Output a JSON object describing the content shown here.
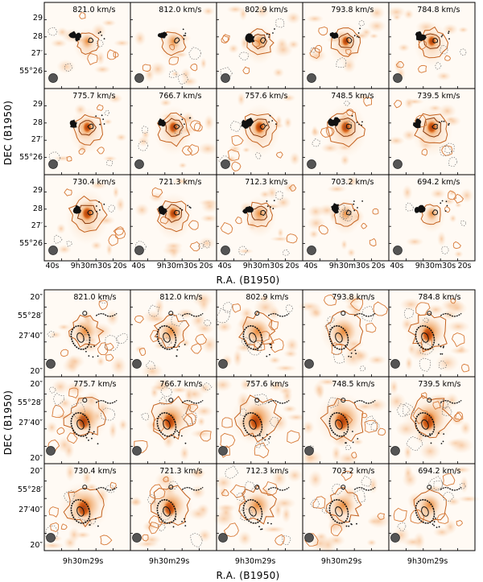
{
  "figure": {
    "top": {
      "velocity_unit": "km/s",
      "velocities": [
        "821.0",
        "812.0",
        "802.9",
        "793.8",
        "784.8",
        "775.7",
        "766.7",
        "757.6",
        "748.5",
        "739.5",
        "730.4",
        "721.3",
        "712.3",
        "703.2",
        "694.2"
      ],
      "ylabel": "DEC (B1950)",
      "xlabel": "R.A. (B1950)",
      "y_ticks": [
        {
          "main": "29",
          "sup": ""
        },
        {
          "main": "28",
          "sup": ""
        },
        {
          "main": "27",
          "sup": "′"
        },
        {
          "main": "55°26",
          "sup": ""
        }
      ],
      "x_ticks": [
        {
          "main": "40",
          "sup": "s"
        },
        {
          "main": "9h30m30s",
          "sup": ""
        },
        {
          "main": "20",
          "sup": "s"
        }
      ]
    },
    "bottom": {
      "velocity_unit": "km/s",
      "velocities": [
        "821.0",
        "812.0",
        "802.9",
        "793.8",
        "784.8",
        "775.7",
        "766.7",
        "757.6",
        "748.5",
        "739.5",
        "730.4",
        "721.3",
        "712.3",
        "703.2",
        "694.2"
      ],
      "ylabel": "DEC (B1950)",
      "xlabel": "R.A. (B1950)",
      "y_ticks": [
        "20″",
        "55°28′",
        "27′40″",
        "20″"
      ],
      "x_tick": "9h30m29s"
    }
  }
}
